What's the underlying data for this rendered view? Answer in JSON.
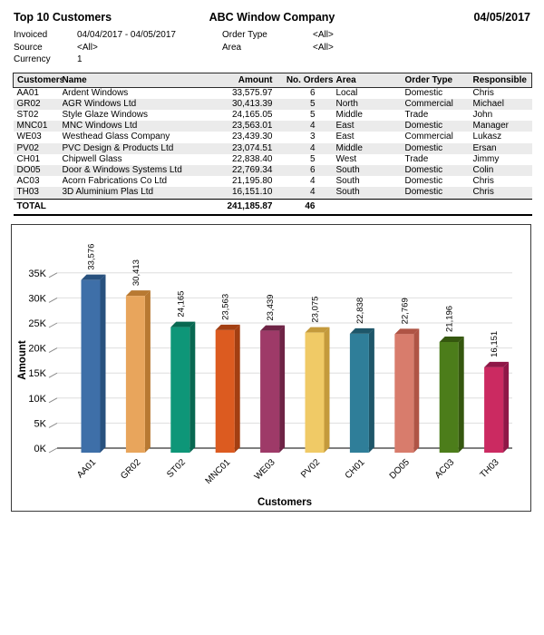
{
  "report": {
    "title": "Top 10 Customers",
    "company": "ABC Window Company",
    "date": "04/05/2017"
  },
  "filters": {
    "invoiced_label": "Invoiced",
    "invoiced_value": "04/04/2017 - 04/05/2017",
    "source_label": "Source",
    "source_value": "<All>",
    "currency_label": "Currency",
    "currency_value": "1",
    "order_type_label": "Order Type",
    "order_type_value": "<All>",
    "area_label": "Area",
    "area_value": "<All>"
  },
  "table": {
    "columns": [
      "Customers",
      "Name",
      "Amount",
      "No. Orders",
      "Area",
      "Order Type",
      "Responsible"
    ],
    "header_bg": "#e8e8e8",
    "stripe_color": "#ebebeb",
    "rows": [
      [
        "AA01",
        "Ardent Windows",
        "33,575.97",
        "6",
        "Local",
        "Domestic",
        "Chris"
      ],
      [
        "GR02",
        "AGR Windows Ltd",
        "30,413.39",
        "5",
        "North",
        "Commercial",
        "Michael"
      ],
      [
        "ST02",
        "Style Glaze Windows",
        "24,165.05",
        "5",
        "Middle",
        "Trade",
        "John"
      ],
      [
        "MNC01",
        "MNC Windows Ltd",
        "23,563.01",
        "4",
        "East",
        "Domestic",
        "Manager"
      ],
      [
        "WE03",
        "Westhead Glass Company",
        "23,439.30",
        "3",
        "East",
        "Commercial",
        "Lukasz"
      ],
      [
        "PV02",
        "PVC Design & Products Ltd",
        "23,074.51",
        "4",
        "Middle",
        "Domestic",
        "Ersan"
      ],
      [
        "CH01",
        "Chipwell Glass",
        "22,838.40",
        "5",
        "West",
        "Trade",
        "Jimmy"
      ],
      [
        "DO05",
        "Door & Windows Systems Ltd",
        "22,769.34",
        "6",
        "South",
        "Domestic",
        "Colin"
      ],
      [
        "AC03",
        "Acorn Fabrications Co Ltd",
        "21,195.80",
        "4",
        "South",
        "Domestic",
        "Chris"
      ],
      [
        "TH03",
        "3D Aluminium Plas Ltd",
        "16,151.10",
        "4",
        "South",
        "Domestic",
        "Chris"
      ]
    ],
    "total": {
      "label": "TOTAL",
      "amount": "241,185.87",
      "orders": "46"
    }
  },
  "chart_data": {
    "type": "bar",
    "title": "",
    "xlabel": "Customers",
    "ylabel": "Amount",
    "categories": [
      "AA01",
      "GR02",
      "ST02",
      "MNC01",
      "WE03",
      "PV02",
      "CH01",
      "DO05",
      "AC03",
      "TH03"
    ],
    "values": [
      33576,
      30413,
      24165,
      23563,
      23439,
      23075,
      22838,
      22769,
      21196,
      16151
    ],
    "value_labels": [
      "33,576",
      "30,413",
      "24,165",
      "23,563",
      "23,439",
      "23,075",
      "22,838",
      "22,769",
      "21,196",
      "16,151"
    ],
    "bar_colors": [
      "#3E6FA8",
      "#E8A55C",
      "#0E9678",
      "#DC5B20",
      "#9E3A68",
      "#F0CA66",
      "#2F7E99",
      "#D87C6C",
      "#4C7D1A",
      "#CB2A61"
    ],
    "bar_side_colors": [
      "#28517E",
      "#B87932",
      "#086851",
      "#A33F12",
      "#6E2345",
      "#C49A3C",
      "#1E5669",
      "#AF5445",
      "#35570F",
      "#8F1747"
    ],
    "ylim": [
      0,
      35000
    ],
    "ytick_step": 5000,
    "ytick_labels": [
      "0K",
      "5K",
      "10K",
      "15K",
      "20K",
      "25K",
      "30K",
      "35K"
    ],
    "grid": true,
    "legend": false
  }
}
